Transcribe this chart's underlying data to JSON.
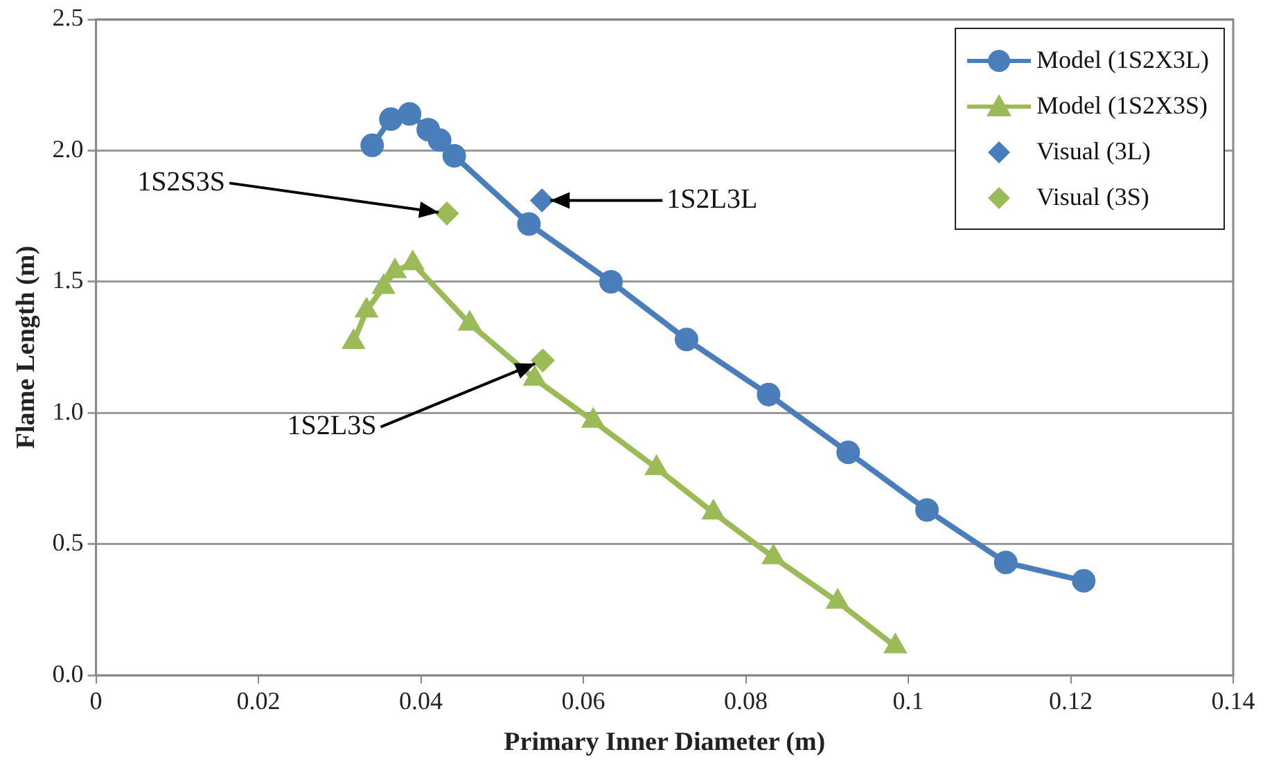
{
  "chart_data": {
    "type": "line",
    "xlabel": "Primary Inner Diameter (m)",
    "ylabel": "Flame Length (m)",
    "xlim": [
      0,
      0.14
    ],
    "xticks": [
      0,
      0.02,
      0.04,
      0.06,
      0.08,
      0.1,
      0.12,
      0.14
    ],
    "ylim": [
      0,
      2.5
    ],
    "yticks": [
      {
        "value": 0,
        "label": "0.0"
      },
      {
        "value": 0.5,
        "label": "0.5"
      },
      {
        "value": 1,
        "label": "1.0"
      },
      {
        "value": 1.5,
        "label": "1.5"
      },
      {
        "value": 2,
        "label": "2.0"
      },
      {
        "value": 2.5,
        "label": "2.5"
      }
    ],
    "grid": "y",
    "legend": "top right",
    "line_style": "solid",
    "series": [
      {
        "name": "Model (1S2X3L)",
        "marker": "circle",
        "color": "#4a7ebb",
        "x": [
          0.034,
          0.0363,
          0.0386,
          0.0409,
          0.0423,
          0.0441,
          0.0533,
          0.0634,
          0.0727,
          0.0828,
          0.0926,
          0.1023,
          0.112,
          0.1216
        ],
        "values": [
          2.02,
          2.12,
          2.14,
          2.08,
          2.04,
          1.98,
          1.72,
          1.5,
          1.28,
          1.07,
          0.85,
          0.63,
          0.43,
          0.36
        ]
      },
      {
        "name": "Model (1S2X3S)",
        "marker": "triangle",
        "color": "#9bbb59",
        "x": [
          0.0317,
          0.0333,
          0.0354,
          0.0368,
          0.039,
          0.046,
          0.054,
          0.0612,
          0.069,
          0.076,
          0.0834,
          0.0913,
          0.0984
        ],
        "values": [
          1.27,
          1.39,
          1.48,
          1.54,
          1.57,
          1.34,
          1.13,
          0.97,
          0.79,
          0.62,
          0.45,
          0.28,
          0.11
        ]
      },
      {
        "name": "Visual (3L)",
        "type": "scatter",
        "marker": "diamond",
        "color": "#4a7ebb",
        "x": [
          0.0549
        ],
        "values": [
          1.81
        ]
      },
      {
        "name": "Visual (3S)",
        "type": "scatter",
        "marker": "diamond",
        "color": "#9bbb59",
        "x": [
          0.0432,
          0.055
        ],
        "values": [
          1.76,
          1.2
        ]
      }
    ],
    "annotations": [
      {
        "text": "1S2S3S",
        "x": 0.0432,
        "y": 1.76
      },
      {
        "text": "1S2L3L",
        "x": 0.0549,
        "y": 1.81
      },
      {
        "text": "1S2L3S",
        "x": 0.055,
        "y": 1.2
      }
    ]
  }
}
